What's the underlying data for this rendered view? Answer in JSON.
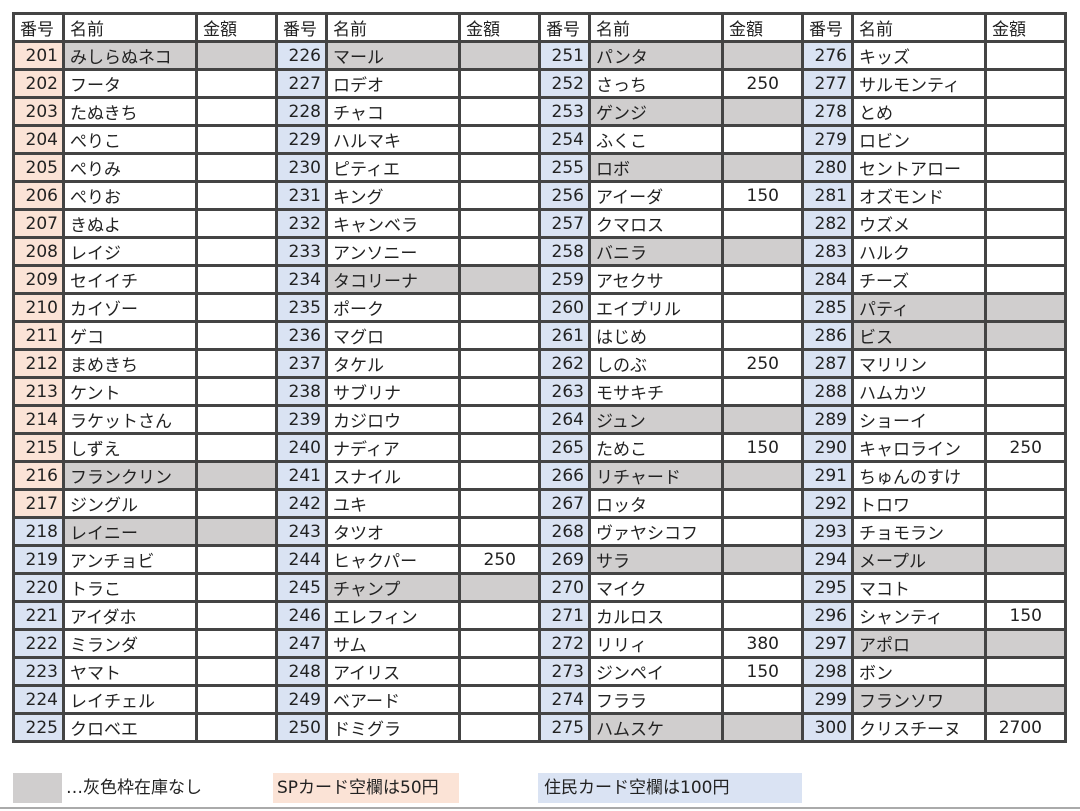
{
  "headers": {
    "no": "番号",
    "name": "名前",
    "amount": "金額"
  },
  "colors": {
    "sp_card": "#fbe3d6",
    "resident_card": "#dae3f3",
    "out_of_stock": "#d0cece",
    "border": "#444444"
  },
  "rows": [
    {
      "no": "201",
      "name": "みしらぬネコ",
      "amount": "",
      "gray": true,
      "card": "sp"
    },
    {
      "no": "202",
      "name": "フータ",
      "amount": "",
      "gray": false,
      "card": "sp"
    },
    {
      "no": "203",
      "name": "たぬきち",
      "amount": "",
      "gray": false,
      "card": "sp"
    },
    {
      "no": "204",
      "name": "ぺりこ",
      "amount": "",
      "gray": false,
      "card": "sp"
    },
    {
      "no": "205",
      "name": "ぺりみ",
      "amount": "",
      "gray": false,
      "card": "sp"
    },
    {
      "no": "206",
      "name": "ぺりお",
      "amount": "",
      "gray": false,
      "card": "sp"
    },
    {
      "no": "207",
      "name": "きぬよ",
      "amount": "",
      "gray": false,
      "card": "sp"
    },
    {
      "no": "208",
      "name": "レイジ",
      "amount": "",
      "gray": false,
      "card": "sp"
    },
    {
      "no": "209",
      "name": "セイイチ",
      "amount": "",
      "gray": false,
      "card": "sp"
    },
    {
      "no": "210",
      "name": "カイゾー",
      "amount": "",
      "gray": false,
      "card": "sp"
    },
    {
      "no": "211",
      "name": "ゲコ",
      "amount": "",
      "gray": false,
      "card": "sp"
    },
    {
      "no": "212",
      "name": "まめきち",
      "amount": "",
      "gray": false,
      "card": "sp"
    },
    {
      "no": "213",
      "name": "ケント",
      "amount": "",
      "gray": false,
      "card": "sp"
    },
    {
      "no": "214",
      "name": "ラケットさん",
      "amount": "",
      "gray": false,
      "card": "sp"
    },
    {
      "no": "215",
      "name": "しずえ",
      "amount": "",
      "gray": false,
      "card": "sp"
    },
    {
      "no": "216",
      "name": "フランクリン",
      "amount": "",
      "gray": true,
      "card": "sp"
    },
    {
      "no": "217",
      "name": "ジングル",
      "amount": "",
      "gray": false,
      "card": "sp"
    },
    {
      "no": "218",
      "name": "レイニー",
      "amount": "",
      "gray": true,
      "card": "res"
    },
    {
      "no": "219",
      "name": "アンチョビ",
      "amount": "",
      "gray": false,
      "card": "res"
    },
    {
      "no": "220",
      "name": "トラこ",
      "amount": "",
      "gray": false,
      "card": "res"
    },
    {
      "no": "221",
      "name": "アイダホ",
      "amount": "",
      "gray": false,
      "card": "res"
    },
    {
      "no": "222",
      "name": "ミランダ",
      "amount": "",
      "gray": false,
      "card": "res"
    },
    {
      "no": "223",
      "name": "ヤマト",
      "amount": "",
      "gray": false,
      "card": "res"
    },
    {
      "no": "224",
      "name": "レイチェル",
      "amount": "",
      "gray": false,
      "card": "res"
    },
    {
      "no": "225",
      "name": "クロベエ",
      "amount": "",
      "gray": false,
      "card": "res"
    },
    {
      "no": "226",
      "name": "マール",
      "amount": "",
      "gray": true,
      "card": "res"
    },
    {
      "no": "227",
      "name": "ロデオ",
      "amount": "",
      "gray": false,
      "card": "res"
    },
    {
      "no": "228",
      "name": "チャコ",
      "amount": "",
      "gray": false,
      "card": "res"
    },
    {
      "no": "229",
      "name": "ハルマキ",
      "amount": "",
      "gray": false,
      "card": "res"
    },
    {
      "no": "230",
      "name": "ピティエ",
      "amount": "",
      "gray": false,
      "card": "res"
    },
    {
      "no": "231",
      "name": "キング",
      "amount": "",
      "gray": false,
      "card": "res"
    },
    {
      "no": "232",
      "name": "キャンベラ",
      "amount": "",
      "gray": false,
      "card": "res"
    },
    {
      "no": "233",
      "name": "アンソニー",
      "amount": "",
      "gray": false,
      "card": "res"
    },
    {
      "no": "234",
      "name": "タコリーナ",
      "amount": "",
      "gray": true,
      "card": "res"
    },
    {
      "no": "235",
      "name": "ポーク",
      "amount": "",
      "gray": false,
      "card": "res"
    },
    {
      "no": "236",
      "name": "マグロ",
      "amount": "",
      "gray": false,
      "card": "res"
    },
    {
      "no": "237",
      "name": "タケル",
      "amount": "",
      "gray": false,
      "card": "res"
    },
    {
      "no": "238",
      "name": "サブリナ",
      "amount": "",
      "gray": false,
      "card": "res"
    },
    {
      "no": "239",
      "name": "カジロウ",
      "amount": "",
      "gray": false,
      "card": "res"
    },
    {
      "no": "240",
      "name": "ナディア",
      "amount": "",
      "gray": false,
      "card": "res"
    },
    {
      "no": "241",
      "name": "スナイル",
      "amount": "",
      "gray": false,
      "card": "res"
    },
    {
      "no": "242",
      "name": "ユキ",
      "amount": "",
      "gray": false,
      "card": "res"
    },
    {
      "no": "243",
      "name": "タツオ",
      "amount": "",
      "gray": false,
      "card": "res"
    },
    {
      "no": "244",
      "name": "ヒャクパー",
      "amount": "250",
      "gray": false,
      "card": "res"
    },
    {
      "no": "245",
      "name": "チャンプ",
      "amount": "",
      "gray": true,
      "card": "res"
    },
    {
      "no": "246",
      "name": "エレフィン",
      "amount": "",
      "gray": false,
      "card": "res"
    },
    {
      "no": "247",
      "name": "サム",
      "amount": "",
      "gray": false,
      "card": "res"
    },
    {
      "no": "248",
      "name": "アイリス",
      "amount": "",
      "gray": false,
      "card": "res"
    },
    {
      "no": "249",
      "name": "ベアード",
      "amount": "",
      "gray": false,
      "card": "res"
    },
    {
      "no": "250",
      "name": "ドミグラ",
      "amount": "",
      "gray": false,
      "card": "res"
    },
    {
      "no": "251",
      "name": "パンタ",
      "amount": "",
      "gray": true,
      "card": "res"
    },
    {
      "no": "252",
      "name": "さっち",
      "amount": "250",
      "gray": false,
      "card": "res"
    },
    {
      "no": "253",
      "name": "ゲンジ",
      "amount": "",
      "gray": true,
      "card": "res"
    },
    {
      "no": "254",
      "name": "ふくこ",
      "amount": "",
      "gray": false,
      "card": "res"
    },
    {
      "no": "255",
      "name": "ロボ",
      "amount": "",
      "gray": true,
      "card": "res"
    },
    {
      "no": "256",
      "name": "アイーダ",
      "amount": "150",
      "gray": false,
      "card": "res"
    },
    {
      "no": "257",
      "name": "クマロス",
      "amount": "",
      "gray": false,
      "card": "res"
    },
    {
      "no": "258",
      "name": "バニラ",
      "amount": "",
      "gray": true,
      "card": "res"
    },
    {
      "no": "259",
      "name": "アセクサ",
      "amount": "",
      "gray": false,
      "card": "res"
    },
    {
      "no": "260",
      "name": "エイプリル",
      "amount": "",
      "gray": false,
      "card": "res"
    },
    {
      "no": "261",
      "name": "はじめ",
      "amount": "",
      "gray": false,
      "card": "res"
    },
    {
      "no": "262",
      "name": "しのぶ",
      "amount": "250",
      "gray": false,
      "card": "res"
    },
    {
      "no": "263",
      "name": "モサキチ",
      "amount": "",
      "gray": false,
      "card": "res"
    },
    {
      "no": "264",
      "name": "ジュン",
      "amount": "",
      "gray": true,
      "card": "res"
    },
    {
      "no": "265",
      "name": "ためこ",
      "amount": "150",
      "gray": false,
      "card": "res"
    },
    {
      "no": "266",
      "name": "リチャード",
      "amount": "",
      "gray": true,
      "card": "res"
    },
    {
      "no": "267",
      "name": "ロッタ",
      "amount": "",
      "gray": false,
      "card": "res"
    },
    {
      "no": "268",
      "name": "ヴァヤシコフ",
      "amount": "",
      "gray": false,
      "card": "res"
    },
    {
      "no": "269",
      "name": "サラ",
      "amount": "",
      "gray": true,
      "card": "res"
    },
    {
      "no": "270",
      "name": "マイク",
      "amount": "",
      "gray": false,
      "card": "res"
    },
    {
      "no": "271",
      "name": "カルロス",
      "amount": "",
      "gray": false,
      "card": "res"
    },
    {
      "no": "272",
      "name": "リリィ",
      "amount": "380",
      "gray": false,
      "card": "res"
    },
    {
      "no": "273",
      "name": "ジンペイ",
      "amount": "150",
      "gray": false,
      "card": "res"
    },
    {
      "no": "274",
      "name": "フララ",
      "amount": "",
      "gray": false,
      "card": "res"
    },
    {
      "no": "275",
      "name": "ハムスケ",
      "amount": "",
      "gray": true,
      "card": "res"
    },
    {
      "no": "276",
      "name": "キッズ",
      "amount": "",
      "gray": false,
      "card": "res"
    },
    {
      "no": "277",
      "name": "サルモンティ",
      "amount": "",
      "gray": false,
      "card": "res"
    },
    {
      "no": "278",
      "name": "とめ",
      "amount": "",
      "gray": false,
      "card": "res"
    },
    {
      "no": "279",
      "name": "ロビン",
      "amount": "",
      "gray": false,
      "card": "res"
    },
    {
      "no": "280",
      "name": "セントアロー",
      "amount": "",
      "gray": false,
      "card": "res"
    },
    {
      "no": "281",
      "name": "オズモンド",
      "amount": "",
      "gray": false,
      "card": "res"
    },
    {
      "no": "282",
      "name": "ウズメ",
      "amount": "",
      "gray": false,
      "card": "res"
    },
    {
      "no": "283",
      "name": "ハルク",
      "amount": "",
      "gray": false,
      "card": "res"
    },
    {
      "no": "284",
      "name": "チーズ",
      "amount": "",
      "gray": false,
      "card": "res"
    },
    {
      "no": "285",
      "name": "パティ",
      "amount": "",
      "gray": true,
      "card": "res"
    },
    {
      "no": "286",
      "name": "ビス",
      "amount": "",
      "gray": true,
      "card": "res"
    },
    {
      "no": "287",
      "name": "マリリン",
      "amount": "",
      "gray": false,
      "card": "res"
    },
    {
      "no": "288",
      "name": "ハムカツ",
      "amount": "",
      "gray": false,
      "card": "res"
    },
    {
      "no": "289",
      "name": "ショーイ",
      "amount": "",
      "gray": false,
      "card": "res"
    },
    {
      "no": "290",
      "name": "キャロライン",
      "amount": "250",
      "gray": false,
      "card": "res"
    },
    {
      "no": "291",
      "name": "ちゅんのすけ",
      "amount": "",
      "gray": false,
      "card": "res"
    },
    {
      "no": "292",
      "name": "トロワ",
      "amount": "",
      "gray": false,
      "card": "res"
    },
    {
      "no": "293",
      "name": "チョモラン",
      "amount": "",
      "gray": false,
      "card": "res"
    },
    {
      "no": "294",
      "name": "メープル",
      "amount": "",
      "gray": true,
      "card": "res"
    },
    {
      "no": "295",
      "name": "マコト",
      "amount": "",
      "gray": false,
      "card": "res"
    },
    {
      "no": "296",
      "name": "シャンティ",
      "amount": "150",
      "gray": false,
      "card": "res"
    },
    {
      "no": "297",
      "name": "アポロ",
      "amount": "",
      "gray": true,
      "card": "res"
    },
    {
      "no": "298",
      "name": "ボン",
      "amount": "",
      "gray": false,
      "card": "res"
    },
    {
      "no": "299",
      "name": "フランソワ",
      "amount": "",
      "gray": true,
      "card": "res"
    },
    {
      "no": "300",
      "name": "クリスチーヌ",
      "amount": "2700",
      "gray": false,
      "card": "res"
    }
  ],
  "legend": {
    "gray": "…灰色枠在庫なし",
    "sp": "SPカード空欄は50円",
    "resident": "住民カード空欄は100円"
  }
}
